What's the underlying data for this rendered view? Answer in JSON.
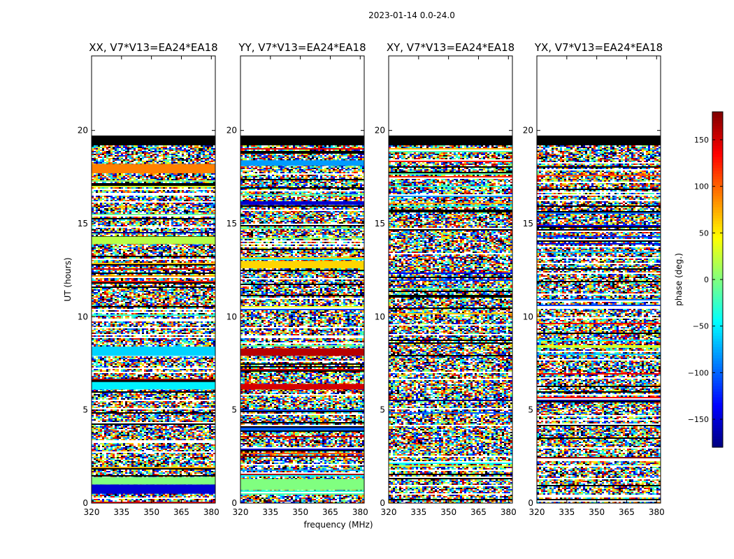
{
  "figure": {
    "suptitle": "2023-01-14 0.0-24.0"
  },
  "chart_data": {
    "type": "heatmap",
    "x_label": "frequency (MHz)",
    "y_label": "UT (hours)",
    "x_range": [
      320,
      382
    ],
    "y_range": [
      0,
      24
    ],
    "x_ticks": [
      "320",
      "335",
      "350",
      "365",
      "380"
    ],
    "x_tick_values": [
      320,
      335,
      350,
      365,
      380
    ],
    "y_ticks": [
      "0",
      "5",
      "10",
      "15",
      "20"
    ],
    "y_tick_values": [
      0,
      5,
      10,
      15,
      20
    ],
    "data_end_hours": 19.2,
    "colorbar": {
      "label": "phase (deg.)",
      "range": [
        -180,
        180
      ],
      "ticks": [
        "−150",
        "−100",
        "−50",
        "0",
        "50",
        "100",
        "150"
      ],
      "tick_values": [
        -150,
        -100,
        -50,
        0,
        50,
        100,
        150
      ],
      "colormap": "jet"
    },
    "panels": [
      {
        "title": "XX, V7*V13=EA24*EA18",
        "polarization": "XX",
        "features": [
          {
            "y0": 0.5,
            "y1": 1.0,
            "phase": -150,
            "label": "dark blue band"
          },
          {
            "y0": 1.0,
            "y1": 1.4,
            "phase": 0
          },
          {
            "y0": 6.1,
            "y1": 6.5,
            "phase": -50
          },
          {
            "y0": 7.9,
            "y1": 8.4,
            "phase": -60
          },
          {
            "y0": 13.9,
            "y1": 14.3,
            "phase": 20
          },
          {
            "y0": 17.7,
            "y1": 18.2,
            "phase": 90
          }
        ]
      },
      {
        "title": "YY, V7*V13=EA24*EA18",
        "polarization": "YY",
        "features": [
          {
            "y0": 0.7,
            "y1": 1.3,
            "phase": 0
          },
          {
            "y0": 6.1,
            "y1": 6.4,
            "phase": 150
          },
          {
            "y0": 7.9,
            "y1": 8.3,
            "phase": 160
          },
          {
            "y0": 12.6,
            "y1": 13.0,
            "phase": 60
          },
          {
            "y0": 16.0,
            "y1": 16.2,
            "phase": -150
          },
          {
            "y0": 18.1,
            "y1": 18.4,
            "phase": -80
          }
        ]
      },
      {
        "title": "XY, V7*V13=EA24*EA18",
        "polarization": "XY",
        "features": []
      },
      {
        "title": "YX, V7*V13=EA24*EA18",
        "polarization": "YX",
        "features": []
      }
    ]
  }
}
